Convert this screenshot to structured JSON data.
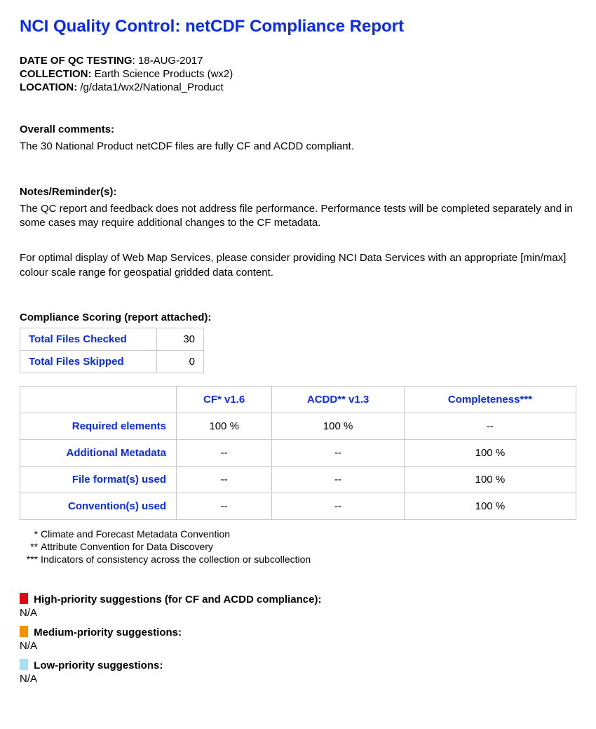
{
  "title": "NCI Quality Control: netCDF Compliance Report",
  "meta": {
    "date_label": "DATE OF QC TESTING",
    "date_value": "18-AUG-2017",
    "collection_label": "COLLECTION:",
    "collection_value": "Earth Science Products (wx2)",
    "location_label": "LOCATION:",
    "location_value": "/g/data1/wx2/National_Product"
  },
  "comments": {
    "heading": "Overall comments:",
    "text": "The 30 National Product netCDF files are fully CF and ACDD compliant."
  },
  "notes": {
    "heading": "Notes/Reminder(s):",
    "p1": "The QC report and feedback does not address file performance. Performance tests will be completed separately and in some cases may require additional changes to the CF metadata.",
    "p2": "For optimal display of Web Map Services, please consider providing NCI Data Services with an appropriate [min/max] colour scale range for geospatial gridded data content."
  },
  "scoring_heading": "Compliance Scoring (report attached):",
  "summary_table": {
    "rows": [
      {
        "label": "Total Files Checked",
        "value": "30"
      },
      {
        "label": "Total Files Skipped",
        "value": "0"
      }
    ]
  },
  "score_table": {
    "columns": [
      "",
      "CF* v1.6",
      "ACDD** v1.3",
      "Completeness***"
    ],
    "rows": [
      {
        "label": "Required elements",
        "cells": [
          "100 %",
          "100 %",
          "--"
        ]
      },
      {
        "label": "Additional Metadata",
        "cells": [
          "--",
          "--",
          "100 %"
        ]
      },
      {
        "label": "File format(s) used",
        "cells": [
          "--",
          "--",
          "100 %"
        ]
      },
      {
        "label": "Convention(s) used",
        "cells": [
          "--",
          "--",
          "100 %"
        ]
      }
    ]
  },
  "footnotes": [
    {
      "stars": "*",
      "text": "Climate and Forecast Metadata Convention"
    },
    {
      "stars": "**",
      "text": "Attribute Convention for Data Discovery"
    },
    {
      "stars": "***",
      "text": "Indicators of consistency across the collection or subcollection"
    }
  ],
  "priorities": {
    "high": {
      "color": "#e30613",
      "label": "High-priority suggestions (for CF and ACDD compliance):",
      "value": "N/A"
    },
    "medium": {
      "color": "#f39200",
      "label": "Medium-priority suggestions:",
      "value": "N/A"
    },
    "low": {
      "color": "#a7dff5",
      "label": "Low-priority suggestions:",
      "value": "N/A"
    }
  }
}
